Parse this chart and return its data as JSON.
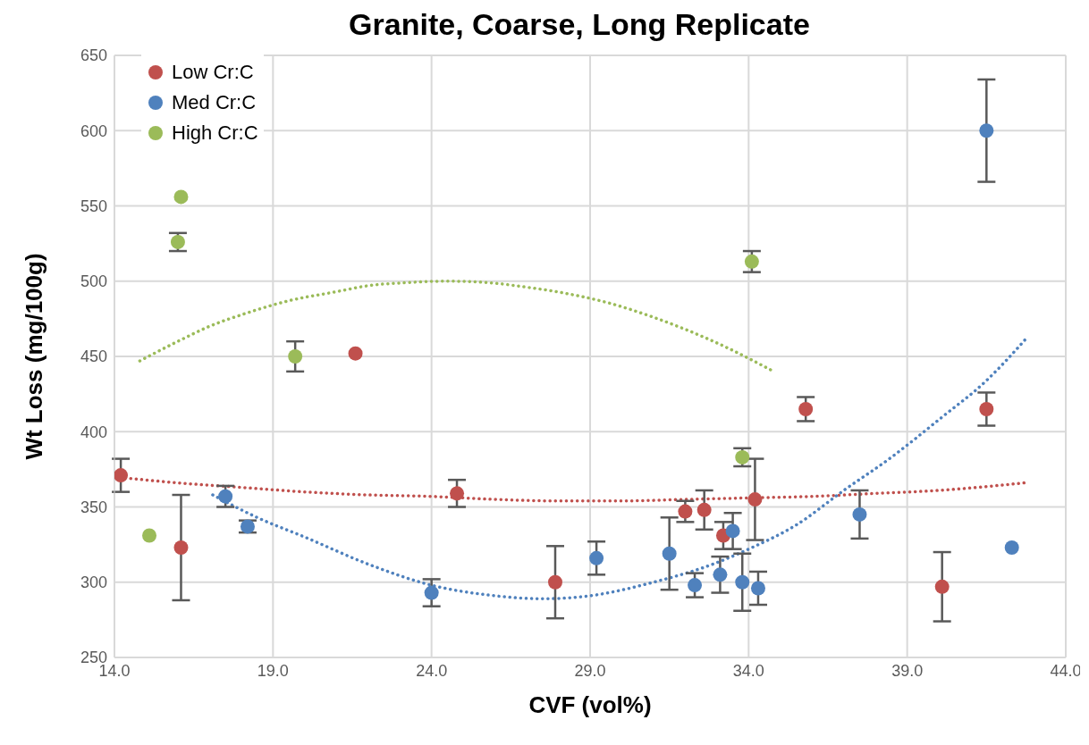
{
  "chart_data": {
    "type": "scatter",
    "title": "Granite, Coarse, Long Replicate",
    "xlabel": "CVF (vol%)",
    "ylabel": "Wt Loss (mg/100g)",
    "xlim": [
      14,
      44
    ],
    "xticks": [
      {
        "value": 14,
        "label": "14.0"
      },
      {
        "value": 19,
        "label": "19.0"
      },
      {
        "value": 24,
        "label": "24.0"
      },
      {
        "value": 29,
        "label": "29.0"
      },
      {
        "value": 34,
        "label": "34.0"
      },
      {
        "value": 39,
        "label": "39.0"
      },
      {
        "value": 44,
        "label": "44.0"
      }
    ],
    "ylim": [
      250,
      650
    ],
    "yticks": [
      250,
      300,
      350,
      400,
      450,
      500,
      550,
      600,
      650
    ],
    "grid": true,
    "legend": "top left",
    "marker": "circle",
    "series": [
      {
        "name": "Low Cr:C",
        "color": "#c0504d",
        "x": [
          14.2,
          16.1,
          21.6,
          24.8,
          27.9,
          32.0,
          32.6,
          33.2,
          34.2,
          35.8,
          40.1,
          41.5
        ],
        "values": [
          371,
          323,
          452,
          359,
          300,
          347,
          348,
          331,
          355,
          415,
          297,
          415
        ],
        "errors": [
          11,
          35,
          null,
          9,
          24,
          7,
          13,
          9,
          27,
          8,
          23,
          11
        ]
      },
      {
        "name": "Med Cr:C",
        "color": "#4f81bd",
        "x": [
          17.5,
          18.2,
          24.0,
          29.2,
          31.5,
          32.3,
          33.1,
          33.5,
          33.8,
          34.3,
          37.5,
          41.5,
          42.3
        ],
        "values": [
          357,
          337,
          293,
          316,
          319,
          298,
          305,
          334,
          300,
          296,
          345,
          600,
          323
        ],
        "errors": [
          7,
          4,
          9,
          11,
          24,
          8,
          12,
          12,
          19,
          11,
          16,
          34,
          null
        ]
      },
      {
        "name": "High Cr:C",
        "color": "#9bbb59",
        "x": [
          15.1,
          16.1,
          16.0,
          19.7,
          34.1,
          33.8
        ],
        "values": [
          331,
          556,
          526,
          450,
          513,
          383
        ],
        "errors": [
          null,
          null,
          6,
          10,
          7,
          6
        ]
      },
      {
        "type": "line",
        "color": "#c0504d",
        "marker": "none",
        "line_style": "dotted",
        "x": [
          14.0,
          16,
          18,
          20,
          22,
          24,
          26,
          28,
          30,
          32,
          34,
          36,
          38,
          40,
          42.7
        ],
        "values": [
          370,
          366,
          363,
          360,
          358,
          357,
          355,
          354,
          354,
          355,
          356,
          357,
          359,
          361,
          366
        ]
      },
      {
        "type": "line",
        "color": "#4f81bd",
        "marker": "none",
        "line_style": "dotted",
        "x": [
          17.1,
          18.5,
          20,
          22,
          24,
          26,
          27.5,
          29,
          31,
          33,
          34,
          35.5,
          37,
          38.5,
          40,
          41.5,
          42.8
        ],
        "values": [
          358,
          343,
          330,
          312,
          298,
          291,
          289,
          291,
          300,
          313,
          322,
          338,
          361,
          383,
          408,
          434,
          463
        ]
      },
      {
        "type": "line",
        "color": "#9bbb59",
        "marker": "none",
        "line_style": "dotted",
        "x": [
          14.8,
          16,
          17,
          18.2,
          19.5,
          21,
          22,
          23.2,
          24.5,
          25.8,
          27,
          28.2,
          29.5,
          31,
          32,
          33.3,
          34.7
        ],
        "values": [
          447,
          460,
          470,
          479,
          487,
          493,
          497,
          499,
          500,
          499,
          496,
          492,
          486,
          476,
          468,
          456,
          441
        ]
      }
    ]
  }
}
